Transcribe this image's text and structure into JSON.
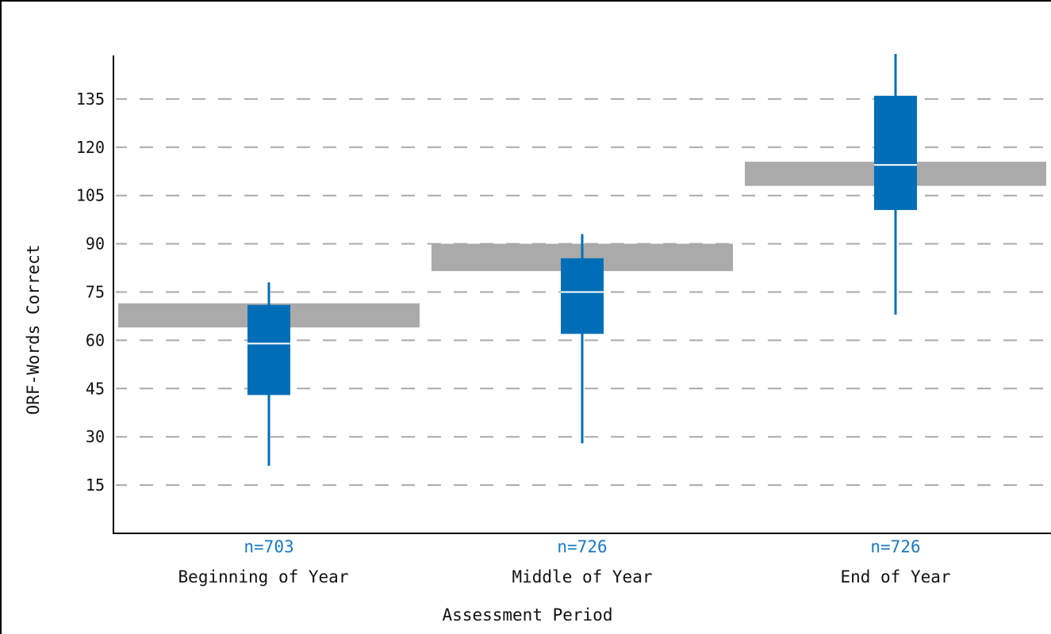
{
  "chart_data": {
    "type": "box",
    "xlabel": "Assessment Period",
    "ylabel": "ORF-Words Correct",
    "ylim": [
      0,
      150
    ],
    "yticks": [
      15,
      30,
      45,
      60,
      75,
      90,
      105,
      120,
      135
    ],
    "grid": true,
    "colors": {
      "box": "#006eb6",
      "benchmark": "#aaaaaa",
      "median": "#ffffff",
      "count": "#1a78c2",
      "grid": "#aaaaaa"
    },
    "categories": [
      "Beginning of Year",
      "Middle of Year",
      "End of Year"
    ],
    "counts": [
      "n=703",
      "n=726",
      "n=726"
    ],
    "boxes": [
      {
        "whisker_low": 21,
        "q1": 43,
        "median": 59,
        "q3": 71,
        "whisker_high": 78
      },
      {
        "whisker_low": 28,
        "q1": 62,
        "median": 75,
        "q3": 85.5,
        "whisker_high": 93
      },
      {
        "whisker_low": 68,
        "q1": 100.5,
        "median": 114.5,
        "q3": 136,
        "whisker_high": 149
      }
    ],
    "benchmark_bands": [
      {
        "low": 64,
        "high": 71.5
      },
      {
        "low": 81.5,
        "high": 90
      },
      {
        "low": 108,
        "high": 115.5
      }
    ]
  }
}
